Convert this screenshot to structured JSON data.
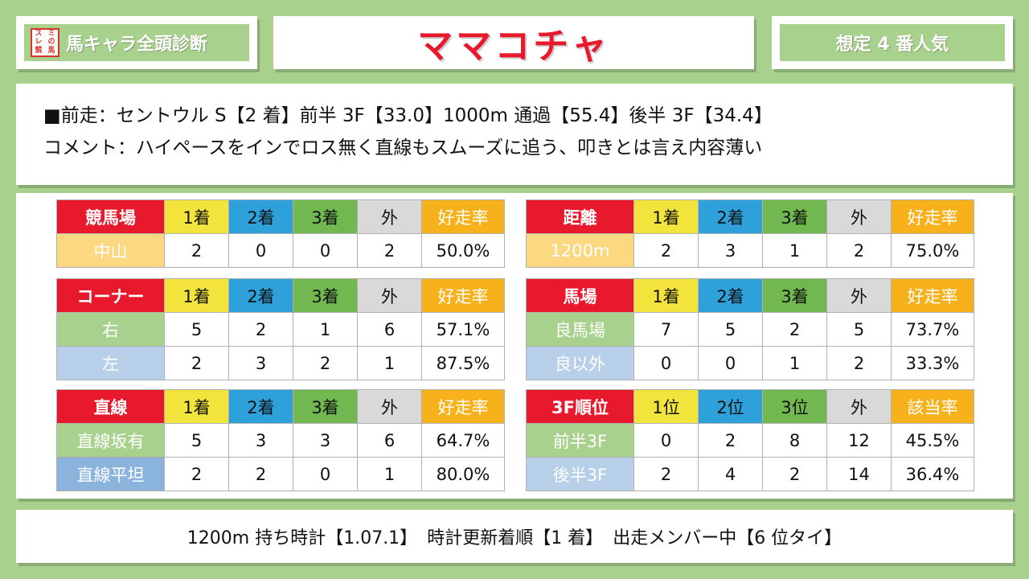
{
  "header": {
    "logo_chars": [
      "ス",
      "ミ",
      "レ",
      "の",
      "競",
      "馬"
    ],
    "series_title": "馬キャラ全頭診断",
    "horse_name": "ママコチャ",
    "popularity": "想定 4 番人気"
  },
  "info": {
    "last_race": "■前走：セントウル S【2 着】前半 3F【33.0】1000m 通過【55.4】後半 3F【34.4】",
    "comment": "コメント：ハイペースをインでロス無く直線もスムーズに追う、叩きとは言え内容薄い"
  },
  "tables": {
    "course": {
      "headers": [
        "競馬場",
        "1着",
        "2着",
        "3着",
        "外",
        "好走率"
      ],
      "rows": [
        {
          "label": "中山",
          "values": [
            "2",
            "0",
            "0",
            "2",
            "50.0%"
          ]
        }
      ]
    },
    "distance": {
      "headers": [
        "距離",
        "1着",
        "2着",
        "3着",
        "外",
        "好走率"
      ],
      "rows": [
        {
          "label": "1200m",
          "values": [
            "2",
            "3",
            "1",
            "2",
            "75.0%"
          ]
        }
      ]
    },
    "corner": {
      "headers": [
        "コーナー",
        "1着",
        "2着",
        "3着",
        "外",
        "好走率"
      ],
      "rows": [
        {
          "label": "右",
          "values": [
            "5",
            "2",
            "1",
            "6",
            "57.1%"
          ]
        },
        {
          "label": "左",
          "values": [
            "2",
            "3",
            "2",
            "1",
            "87.5%"
          ]
        }
      ]
    },
    "track": {
      "headers": [
        "馬場",
        "1着",
        "2着",
        "3着",
        "外",
        "好走率"
      ],
      "rows": [
        {
          "label": "良馬場",
          "values": [
            "7",
            "5",
            "2",
            "5",
            "73.7%"
          ]
        },
        {
          "label": "良以外",
          "values": [
            "0",
            "0",
            "1",
            "2",
            "33.3%"
          ]
        }
      ]
    },
    "straight": {
      "headers": [
        "直線",
        "1着",
        "2着",
        "3着",
        "外",
        "好走率"
      ],
      "rows": [
        {
          "label": "直線坂有",
          "values": [
            "5",
            "3",
            "3",
            "6",
            "64.7%"
          ]
        },
        {
          "label": "直線平坦",
          "values": [
            "2",
            "2",
            "0",
            "1",
            "80.0%"
          ]
        }
      ]
    },
    "f3rank": {
      "headers": [
        "3F順位",
        "1位",
        "2位",
        "3位",
        "外",
        "該当率"
      ],
      "rows": [
        {
          "label": "前半3F",
          "values": [
            "0",
            "2",
            "8",
            "12",
            "45.5%"
          ]
        },
        {
          "label": "後半3F",
          "values": [
            "2",
            "4",
            "2",
            "14",
            "36.4%"
          ]
        }
      ]
    }
  },
  "footer": {
    "time": "1200m 持ち時計【1.07.1】",
    "update_order": "時計更新着順【1 着】",
    "member_rank": "出走メンバー中【6 位タイ】"
  },
  "colors": {
    "background": "#a9d18e",
    "title_red": "#e8192c",
    "first": "#f2e33d",
    "second": "#2ea1db",
    "third": "#70b84f",
    "other": "#d9d9d9",
    "rate": "#f7b21b"
  }
}
